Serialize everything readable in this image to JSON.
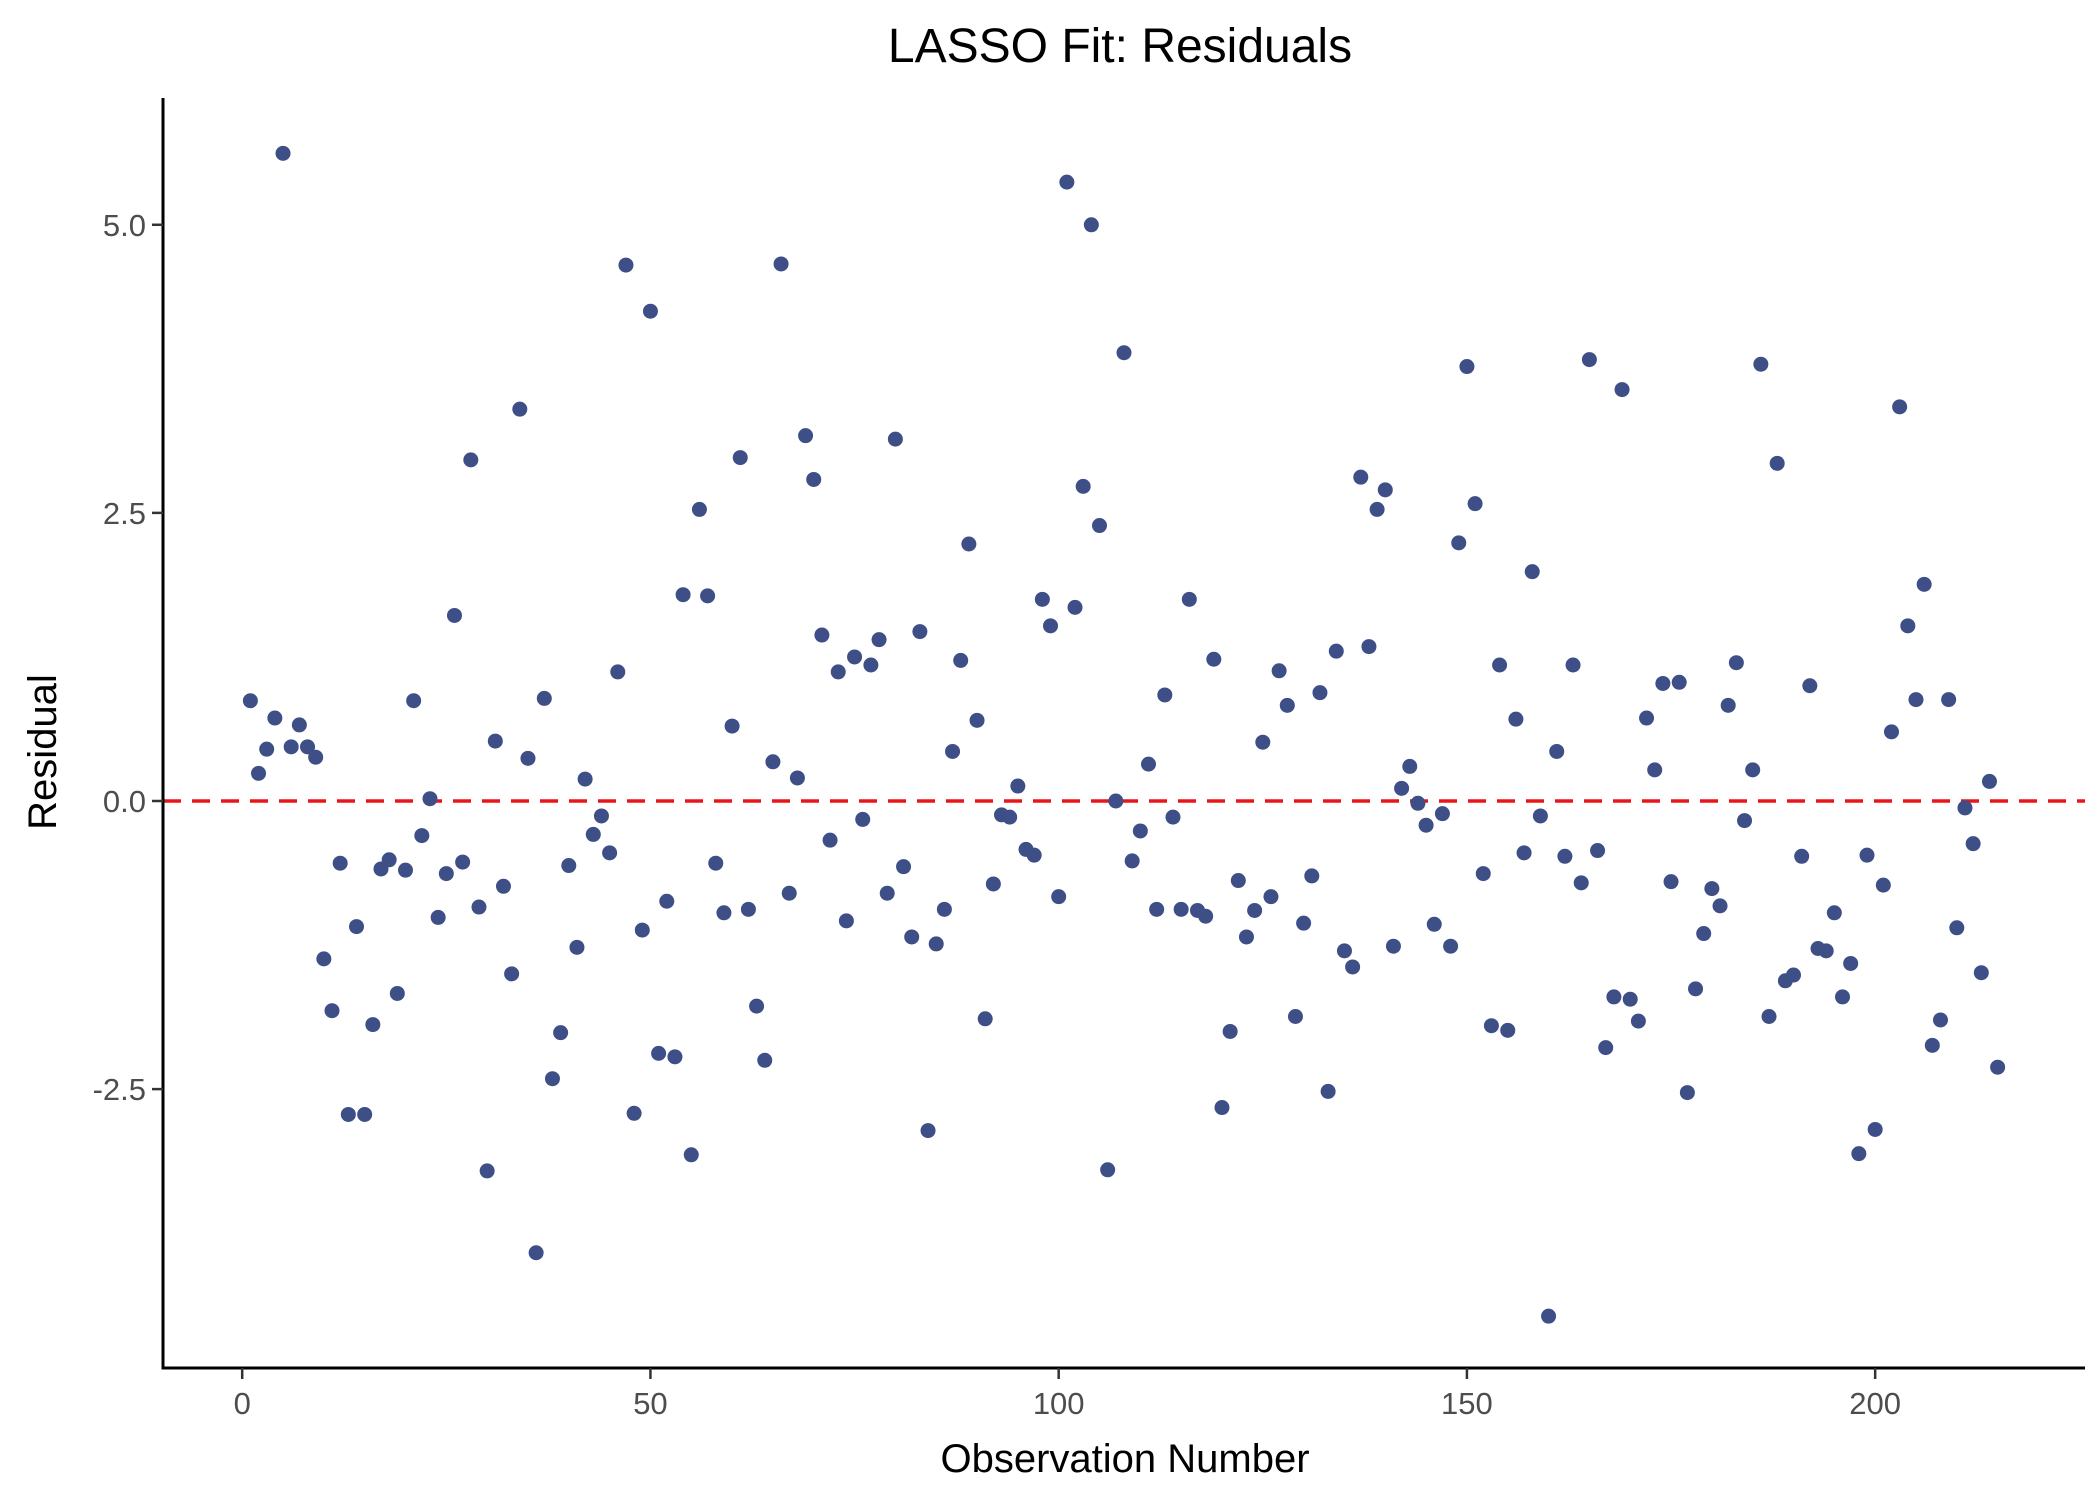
{
  "chart_data": {
    "type": "scatter",
    "title": "LASSO Fit: Residuals",
    "xlabel": "Observation Number",
    "ylabel": "Residual",
    "xlim": [
      -9.7,
      225.7
    ],
    "ylim": [
      -4.92,
      6.1
    ],
    "xticks": [
      0,
      50,
      100,
      150,
      200
    ],
    "xtick_labels": [
      "0",
      "50",
      "100",
      "150",
      "200"
    ],
    "yticks": [
      -2.5,
      0,
      2.5,
      5
    ],
    "ytick_labels": [
      "-2.5",
      "0.0",
      "2.5",
      "5.0"
    ],
    "grid": false,
    "legend": "none",
    "point_color": "#3d4f86",
    "reference_line": {
      "y": 0,
      "color": "#e8161b",
      "style": "dashed"
    },
    "x": [
      1,
      2,
      3,
      4,
      5,
      6,
      7,
      8,
      9,
      10,
      11,
      12,
      13,
      14,
      15,
      16,
      17,
      18,
      19,
      20,
      21,
      22,
      23,
      24,
      25,
      26,
      27,
      28,
      29,
      30,
      31,
      32,
      33,
      34,
      35,
      36,
      37,
      38,
      39,
      40,
      41,
      42,
      43,
      44,
      45,
      46,
      47,
      48,
      49,
      50,
      51,
      52,
      53,
      54,
      55,
      56,
      57,
      58,
      59,
      60,
      61,
      62,
      63,
      64,
      65,
      66,
      67,
      68,
      69,
      70,
      71,
      72,
      73,
      74,
      75,
      76,
      77,
      78,
      79,
      80,
      81,
      82,
      83,
      84,
      85,
      86,
      87,
      88,
      89,
      90,
      91,
      92,
      93,
      94,
      95,
      96,
      97,
      98,
      99,
      100,
      101,
      102,
      103,
      104,
      105,
      106,
      107,
      108,
      109,
      110,
      111,
      112,
      113,
      114,
      115,
      116,
      117,
      118,
      119,
      120,
      121,
      122,
      123,
      124,
      125,
      126,
      127,
      128,
      129,
      130,
      131,
      132,
      133,
      134,
      135,
      136,
      137,
      138,
      139,
      140,
      141,
      142,
      143,
      144,
      145,
      146,
      147,
      148,
      149,
      150,
      151,
      152,
      153,
      154,
      155,
      156,
      157,
      158,
      159,
      160,
      161,
      162,
      163,
      164,
      165,
      166,
      167,
      168,
      169,
      170,
      171,
      172,
      173,
      174,
      175,
      176,
      177,
      178,
      179,
      180,
      181,
      182,
      183,
      184,
      185,
      186,
      187,
      188,
      189,
      190,
      191,
      192,
      193,
      194,
      195,
      196,
      197,
      198,
      199,
      200,
      201,
      202,
      203,
      204,
      205,
      206,
      207,
      208,
      209,
      210,
      211,
      212,
      213,
      214,
      215
    ],
    "y": [
      0.87,
      0.24,
      0.45,
      0.72,
      5.62,
      0.47,
      0.66,
      0.47,
      0.38,
      -1.37,
      -1.82,
      -0.54,
      -2.72,
      -1.09,
      -2.72,
      -1.94,
      -0.59,
      -0.51,
      -1.67,
      -0.6,
      0.87,
      -0.3,
      0.02,
      -1.01,
      -0.63,
      1.61,
      -0.53,
      2.96,
      -0.92,
      -3.21,
      0.52,
      -0.74,
      -1.5,
      3.4,
      0.37,
      -3.92,
      0.89,
      -2.41,
      -2.01,
      -0.56,
      -1.27,
      0.19,
      -0.29,
      -0.13,
      -0.45,
      1.12,
      4.65,
      -2.71,
      -1.12,
      4.25,
      -2.19,
      -0.87,
      -2.22,
      1.79,
      -3.07,
      2.53,
      1.78,
      -0.54,
      -0.97,
      0.65,
      2.98,
      -0.94,
      -1.78,
      -2.25,
      0.34,
      4.66,
      -0.8,
      0.2,
      3.17,
      2.79,
      1.44,
      -0.34,
      1.12,
      -1.04,
      1.25,
      -0.16,
      1.18,
      1.4,
      -0.8,
      3.14,
      -0.57,
      -1.18,
      1.47,
      -2.86,
      -1.24,
      -0.94,
      0.43,
      1.22,
      2.23,
      0.7,
      -1.89,
      -0.72,
      -0.12,
      -0.14,
      0.13,
      -0.42,
      -0.47,
      1.75,
      1.52,
      -0.83,
      5.37,
      1.68,
      2.73,
      5.0,
      2.39,
      -3.2,
      0.0,
      3.89,
      -0.52,
      -0.26,
      0.32,
      -0.94,
      0.92,
      -0.14,
      -0.94,
      1.75,
      -0.95,
      -1.0,
      1.23,
      -2.66,
      -2.0,
      -0.69,
      -1.18,
      -0.95,
      0.51,
      -0.83,
      1.13,
      0.83,
      -1.87,
      -1.06,
      -0.65,
      0.94,
      -2.52,
      1.3,
      -1.3,
      -1.44,
      2.81,
      1.34,
      2.53,
      2.7,
      -1.26,
      0.11,
      0.3,
      -0.02,
      -0.21,
      -1.07,
      -0.11,
      -1.26,
      2.24,
      3.77,
      2.58,
      -0.63,
      -1.95,
      1.18,
      -1.99,
      0.71,
      -0.45,
      1.99,
      -0.13,
      -4.47,
      0.43,
      -0.48,
      1.18,
      -0.71,
      3.83,
      -0.43,
      -2.14,
      -1.7,
      3.57,
      -1.72,
      -1.91,
      0.72,
      0.27,
      1.02,
      -0.7,
      1.03,
      -2.53,
      -1.63,
      -1.15,
      -0.76,
      -0.91,
      0.83,
      1.2,
      -0.17,
      0.27,
      3.79,
      -1.87,
      2.93,
      -1.56,
      -1.51,
      -0.48,
      1.0,
      -1.28,
      -1.3,
      -0.97,
      -1.7,
      -1.41,
      -3.06,
      -0.47,
      -2.85,
      -0.73,
      0.6,
      3.42,
      1.52,
      0.88,
      1.88,
      -2.12,
      -1.9,
      0.88,
      -1.1,
      -0.06,
      -0.37,
      -1.49,
      0.17,
      -2.31
    ]
  }
}
